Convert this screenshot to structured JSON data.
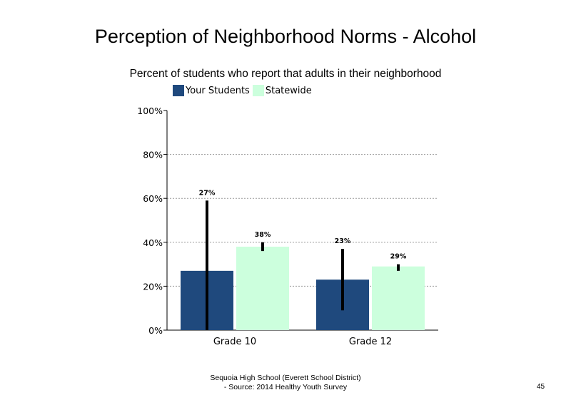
{
  "chart_data": {
    "type": "bar",
    "title": "Perception of Neighborhood Norms - Alcohol",
    "subtitle": "Percent of students who report that adults in their neighborhood",
    "categories": [
      "Grade 10",
      "Grade 12"
    ],
    "series": [
      {
        "name": "Your Students",
        "color": "#1F497D",
        "values": [
          27,
          23
        ],
        "labels": [
          "27%",
          "23%"
        ],
        "error": [
          [
            0,
            59
          ],
          [
            9,
            37
          ]
        ]
      },
      {
        "name": "Statewide",
        "color": "#CCFFDD",
        "values": [
          38,
          29
        ],
        "labels": [
          "38%",
          "29%"
        ],
        "error": [
          [
            36,
            40
          ],
          [
            27,
            30
          ]
        ]
      }
    ],
    "yticks": [
      "0%",
      "20%",
      "40%",
      "60%",
      "80%",
      "100%"
    ],
    "ylim": [
      0,
      100
    ],
    "grid": true,
    "legend": "top-left"
  },
  "footer": {
    "line1": "Sequoia High School (Everett School District)",
    "line2": "- Source: 2014 Healthy Youth Survey"
  },
  "page_number": "45"
}
